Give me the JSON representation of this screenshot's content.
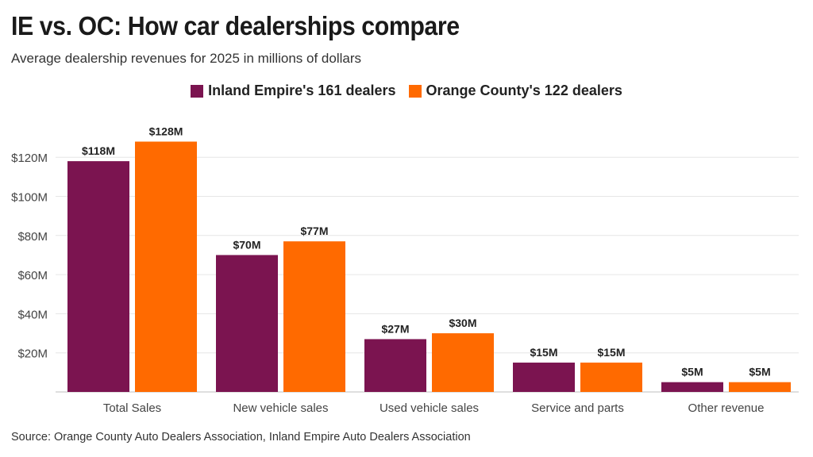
{
  "title": "IE vs. OC: How car dealerships compare",
  "subtitle": "Average dealership revenues for 2025 in millions of dollars",
  "source": "Source: Orange County Auto Dealers Association, Inland Empire Auto Dealers Association",
  "colors": {
    "ie": "#7b1450",
    "oc": "#ff6a00",
    "grid": "#e6e6e6",
    "axis": "#bfbfbf"
  },
  "chart_data": {
    "type": "bar",
    "categories": [
      "Total Sales",
      "New vehicle sales",
      "Used vehicle sales",
      "Service and parts",
      "Other revenue"
    ],
    "series": [
      {
        "name": "Inland Empire's 161 dealers",
        "values": [
          118,
          70,
          27,
          15,
          5
        ],
        "labels": [
          "$118M",
          "$70M",
          "$27M",
          "$15M",
          "$5M"
        ]
      },
      {
        "name": "Orange County's 122 dealers",
        "values": [
          128,
          77,
          30,
          15,
          5
        ],
        "labels": [
          "$128M",
          "$77M",
          "$30M",
          "$15M",
          "$5M"
        ]
      }
    ],
    "yticks": [
      20,
      40,
      60,
      80,
      100,
      120
    ],
    "ytick_labels": [
      "$20M",
      "$40M",
      "$60M",
      "$80M",
      "$100M",
      "$120M"
    ],
    "ylim": [
      0,
      130
    ],
    "grid": true,
    "legend_position": "top-center"
  }
}
